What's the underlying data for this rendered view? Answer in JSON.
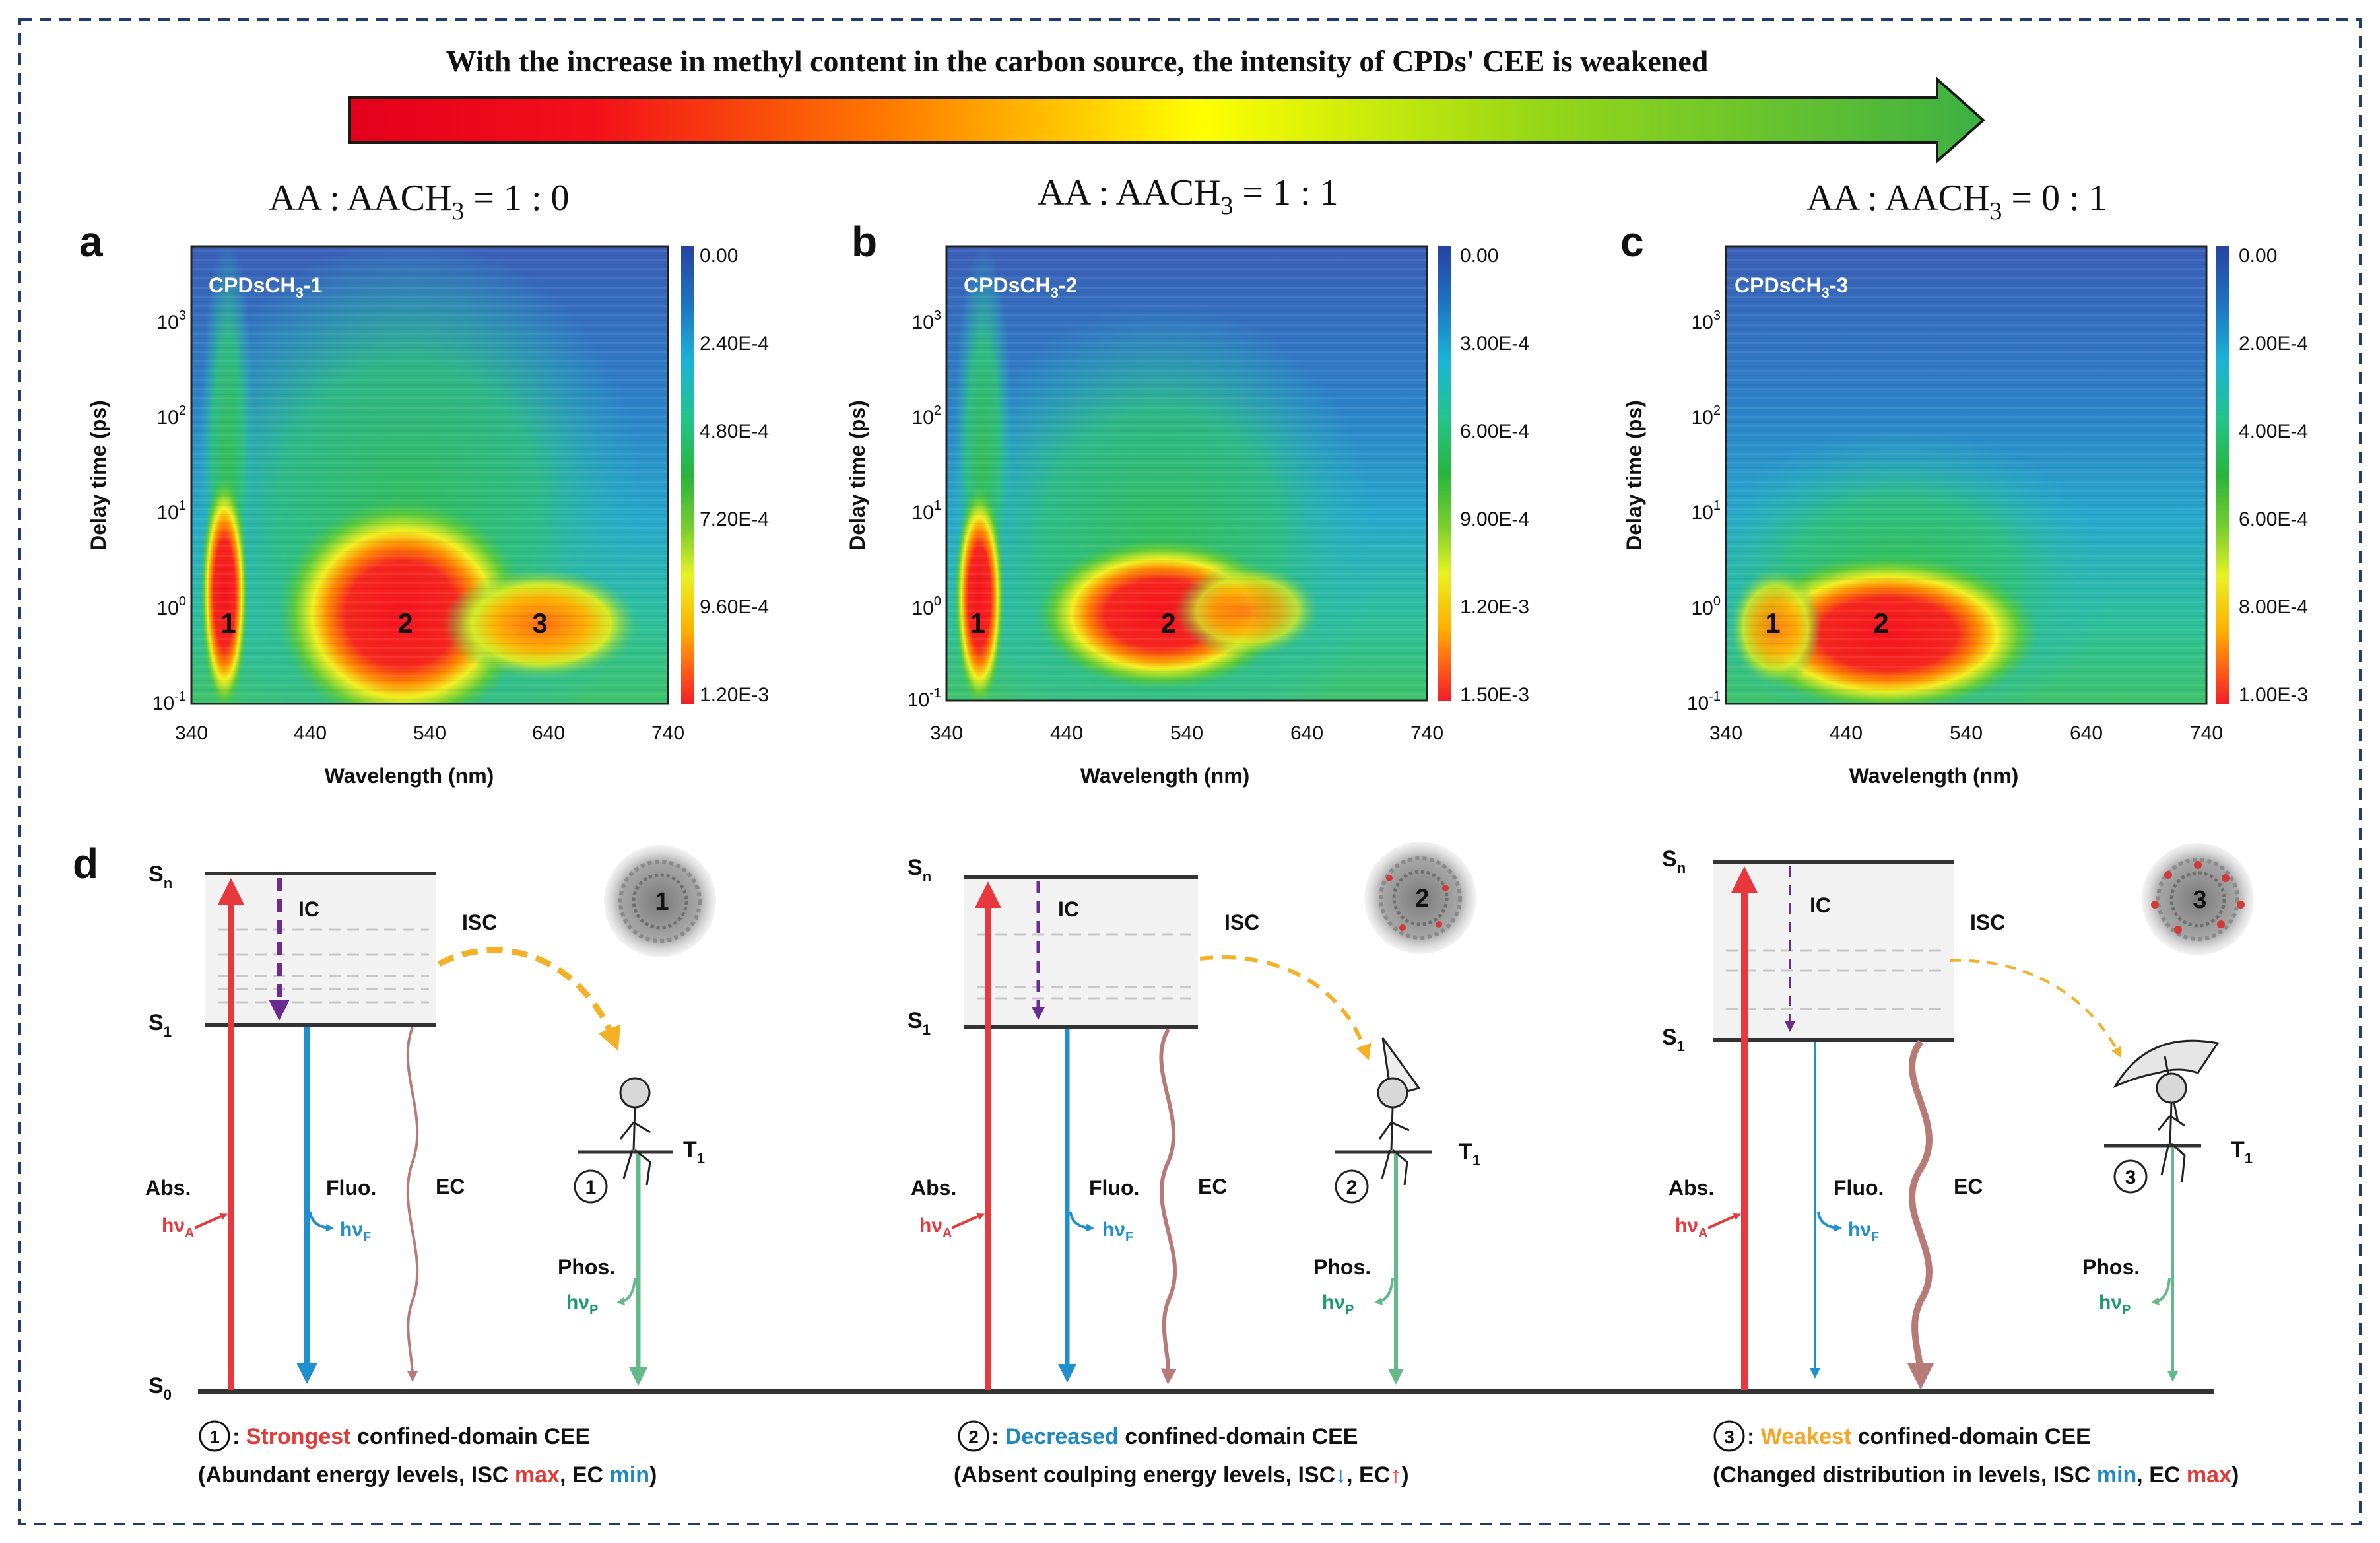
{
  "banner": {
    "title": "With the increase in methyl content in the carbon source, the intensity of CPDs' CEE is weakened"
  },
  "panels": [
    {
      "letter": "a",
      "ratio_prefix": "AA : AACH",
      "ratio_sub": "3",
      "ratio_value": " = 1 : 0",
      "sample_prefix": "CPDsCH",
      "sample_sub": "3",
      "sample_suffix": "-1",
      "colorbar": [
        "0.00",
        "2.40E-4",
        "4.80E-4",
        "7.20E-4",
        "9.60E-4",
        "1.20E-3"
      ],
      "regions": [
        {
          "label": "1",
          "wavelength": 363
        },
        {
          "label": "2",
          "wavelength": 518
        },
        {
          "label": "3",
          "wavelength": 630
        }
      ]
    },
    {
      "letter": "b",
      "ratio_prefix": "AA : AACH",
      "ratio_sub": "3",
      "ratio_value": " = 1 : 1",
      "sample_prefix": "CPDsCH",
      "sample_sub": "3",
      "sample_suffix": "-2",
      "colorbar": [
        "0.00",
        "3.00E-4",
        "6.00E-4",
        "9.00E-4",
        "1.20E-3",
        "1.50E-3"
      ],
      "regions": [
        {
          "label": "1",
          "wavelength": 363
        },
        {
          "label": "2",
          "wavelength": 518
        }
      ]
    },
    {
      "letter": "c",
      "ratio_prefix": "AA : AACH",
      "ratio_sub": "3",
      "ratio_value": " = 0 : 1",
      "sample_prefix": "CPDsCH",
      "sample_sub": "3",
      "sample_suffix": "-3",
      "colorbar": [
        "0.00",
        "2.00E-4",
        "4.00E-4",
        "6.00E-4",
        "8.00E-4",
        "1.00E-3"
      ],
      "regions": [
        {
          "label": "1",
          "wavelength": 365
        },
        {
          "label": "2",
          "wavelength": 458
        }
      ]
    }
  ],
  "axes": {
    "ylabel": "Delay time (ps)",
    "xlabel": "Wavelength (nm)",
    "xticks": [
      "340",
      "440",
      "540",
      "640",
      "740"
    ],
    "yticks": [
      {
        "base": "10",
        "exp": "3"
      },
      {
        "base": "10",
        "exp": "2"
      },
      {
        "base": "10",
        "exp": "1"
      },
      {
        "base": "10",
        "exp": "0"
      },
      {
        "base": "10",
        "exp": "-1"
      }
    ]
  },
  "diagram": {
    "letter": "d",
    "levels": {
      "sn_base": "S",
      "sn_sub": "n",
      "s1_base": "S",
      "s1_sub": "1",
      "s0_base": "S",
      "s0_sub": "0",
      "t1_base": "T",
      "t1_sub": "1"
    },
    "processes": {
      "ic": "IC",
      "isc": "ISC",
      "abs": "Abs.",
      "fluo": "Fluo.",
      "ec": "EC",
      "phos": "Phos.",
      "hv": "hν",
      "a": "A",
      "f": "F",
      "p": "P"
    },
    "particle_labels": [
      "1",
      "2",
      "3"
    ],
    "circle_labels": [
      "1",
      "2",
      "3"
    ]
  },
  "notes": [
    {
      "circle": "1",
      "sep": " : ",
      "highlight": "Strongest",
      "rest": " confined-domain CEE",
      "line2": [
        {
          "t": "(Abundant energy levels, ISC ",
          "c": "#111111"
        },
        {
          "t": "max",
          "c": "#e53935"
        },
        {
          "t": ", EC ",
          "c": "#111111"
        },
        {
          "t": "min",
          "c": "#1e88c7"
        },
        {
          "t": ")",
          "c": "#111111"
        }
      ]
    },
    {
      "circle": "2",
      "sep": " : ",
      "highlight": "Decreased",
      "rest": " confined-domain CEE",
      "line2": [
        {
          "t": "(Absent coulping energy levels, ISC",
          "c": "#111111"
        },
        {
          "t": "↓",
          "c": "#1e88c7"
        },
        {
          "t": ", EC",
          "c": "#111111"
        },
        {
          "t": "↑",
          "c": "#e53935"
        },
        {
          "t": ")",
          "c": "#111111"
        }
      ]
    },
    {
      "circle": "3",
      "sep": " : ",
      "highlight": "Weakest",
      "rest": " confined-domain CEE",
      "line2": [
        {
          "t": "(Changed distribution in levels, ISC ",
          "c": "#111111"
        },
        {
          "t": "min",
          "c": "#1e88c7"
        },
        {
          "t": ", EC ",
          "c": "#111111"
        },
        {
          "t": "max",
          "c": "#e53935"
        },
        {
          "t": ")",
          "c": "#111111"
        }
      ]
    }
  ],
  "colors": {
    "red": "#e8383d",
    "blue": "#1f8fcf",
    "purple": "#6a2c91",
    "orange": "#f5b026",
    "green": "#64b98a",
    "ec": "#b77a77",
    "border": "#1f3b6f"
  }
}
